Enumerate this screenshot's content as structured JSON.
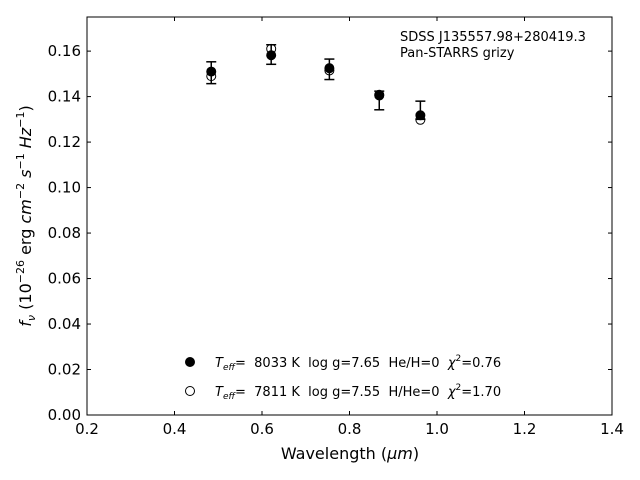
{
  "chart_data": {
    "type": "scatter",
    "xlabel_main": "Wavelength (",
    "xlabel_unit": "μm",
    "xlabel_close": ")",
    "ylabel_f": "f",
    "ylabel_nu": "ν",
    "ylabel_open": " (10",
    "ylabel_exp": "−26",
    "ylabel_erg": " erg ",
    "ylabel_cm": "cm",
    "ylabel_cm_exp": "−2",
    "ylabel_s": " s",
    "ylabel_s_exp": "−1",
    "ylabel_hz": " Hz",
    "ylabel_hz_exp": "−1",
    "ylabel_close": ")",
    "xlim": [
      0.2,
      1.4
    ],
    "ylim": [
      0.0,
      0.175
    ],
    "xticks": [
      "0.2",
      "0.4",
      "0.6",
      "0.8",
      "1.0",
      "1.2",
      "1.4"
    ],
    "yticks": [
      "0.00",
      "0.02",
      "0.04",
      "0.06",
      "0.08",
      "0.10",
      "0.12",
      "0.14",
      "0.16"
    ],
    "annotation_object": "SDSS J135557.98+280419.3",
    "annotation_survey": "Pan-STARRS grizy",
    "observed": [
      {
        "x": 0.484,
        "y": 0.1505,
        "err": 0.0048
      },
      {
        "x": 0.621,
        "y": 0.1585,
        "err": 0.0043
      },
      {
        "x": 0.754,
        "y": 0.152,
        "err": 0.0045
      },
      {
        "x": 0.868,
        "y": 0.1383,
        "err": 0.0041
      },
      {
        "x": 0.962,
        "y": 0.134,
        "err": 0.004
      }
    ],
    "series": [
      {
        "marker": "filled",
        "label_T": "T",
        "label_eff": "eff",
        "label_eq": "=  8033 K  log g=7.65  He/H=0  ",
        "label_chi": "χ",
        "label_chi_exp": "2",
        "label_chi_val": "=0.76",
        "points": [
          {
            "x": 0.484,
            "y": 0.151
          },
          {
            "x": 0.621,
            "y": 0.1582
          },
          {
            "x": 0.754,
            "y": 0.1525
          },
          {
            "x": 0.868,
            "y": 0.1408
          },
          {
            "x": 0.962,
            "y": 0.1318
          }
        ]
      },
      {
        "marker": "open",
        "label_T": "T",
        "label_eff": "eff",
        "label_eq": "=  7811 K  log g=7.55  H/He=0  ",
        "label_chi": "χ",
        "label_chi_exp": "2",
        "label_chi_val": "=1.70",
        "points": [
          {
            "x": 0.484,
            "y": 0.149
          },
          {
            "x": 0.621,
            "y": 0.161
          },
          {
            "x": 0.754,
            "y": 0.1515
          },
          {
            "x": 0.868,
            "y": 0.1405
          },
          {
            "x": 0.962,
            "y": 0.1298
          }
        ]
      }
    ],
    "colors": {
      "marker": "#000000",
      "background": "#ffffff"
    }
  }
}
